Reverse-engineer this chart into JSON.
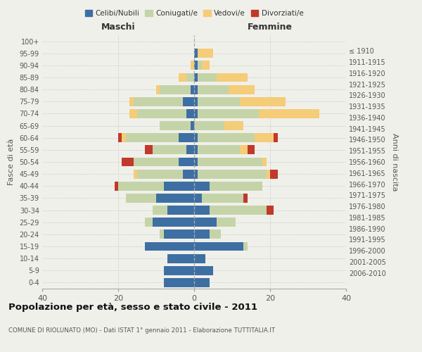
{
  "age_groups": [
    "0-4",
    "5-9",
    "10-14",
    "15-19",
    "20-24",
    "25-29",
    "30-34",
    "35-39",
    "40-44",
    "45-49",
    "50-54",
    "55-59",
    "60-64",
    "65-69",
    "70-74",
    "75-79",
    "80-84",
    "85-89",
    "90-94",
    "95-99",
    "100+"
  ],
  "birth_years": [
    "2006-2010",
    "2001-2005",
    "1996-2000",
    "1991-1995",
    "1986-1990",
    "1981-1985",
    "1976-1980",
    "1971-1975",
    "1966-1970",
    "1961-1965",
    "1956-1960",
    "1951-1955",
    "1946-1950",
    "1941-1945",
    "1936-1940",
    "1931-1935",
    "1926-1930",
    "1921-1925",
    "1916-1920",
    "1911-1915",
    "≤ 1910"
  ],
  "colors": {
    "celibi": "#3e6fa3",
    "coniugati": "#c5d4a8",
    "vedovi": "#f5cc78",
    "divorziati": "#c0392b"
  },
  "maschi": {
    "celibi": [
      8,
      8,
      7,
      13,
      8,
      11,
      7,
      10,
      8,
      3,
      4,
      2,
      4,
      1,
      2,
      3,
      1,
      0,
      0,
      0,
      0
    ],
    "coniugati": [
      0,
      0,
      0,
      0,
      1,
      2,
      4,
      8,
      12,
      12,
      12,
      9,
      14,
      8,
      13,
      13,
      8,
      2,
      0,
      0,
      0
    ],
    "vedovi": [
      0,
      0,
      0,
      0,
      0,
      0,
      0,
      0,
      0,
      1,
      0,
      0,
      1,
      0,
      2,
      1,
      1,
      2,
      1,
      0,
      0
    ],
    "divorziati": [
      0,
      0,
      0,
      0,
      0,
      0,
      0,
      0,
      1,
      0,
      3,
      2,
      1,
      0,
      0,
      0,
      0,
      0,
      0,
      0,
      0
    ]
  },
  "femmine": {
    "celibi": [
      4,
      5,
      3,
      13,
      4,
      6,
      4,
      2,
      4,
      1,
      1,
      1,
      1,
      0,
      1,
      1,
      1,
      1,
      1,
      1,
      0
    ],
    "coniugati": [
      0,
      0,
      0,
      1,
      3,
      5,
      15,
      11,
      14,
      18,
      17,
      11,
      15,
      8,
      16,
      11,
      8,
      5,
      1,
      0,
      0
    ],
    "vedovi": [
      0,
      0,
      0,
      0,
      0,
      0,
      0,
      0,
      0,
      1,
      1,
      2,
      5,
      5,
      16,
      12,
      7,
      8,
      2,
      4,
      0
    ],
    "divorziati": [
      0,
      0,
      0,
      0,
      0,
      0,
      2,
      1,
      0,
      2,
      0,
      2,
      1,
      0,
      0,
      0,
      0,
      0,
      0,
      0,
      0
    ]
  },
  "xlim": 40,
  "title": "Popolazione per età, sesso e stato civile - 2011",
  "subtitle": "COMUNE DI RIOLUNATO (MO) - Dati ISTAT 1° gennaio 2011 - Elaborazione TUTTITALIA.IT",
  "ylabel_left": "Fasce di età",
  "ylabel_right": "Anni di nascita",
  "xlabel_left": "Maschi",
  "xlabel_right": "Femmine",
  "legend_labels": [
    "Celibi/Nubili",
    "Coniugati/e",
    "Vedovi/e",
    "Divorziati/e"
  ],
  "background_color": "#f0f0eb"
}
